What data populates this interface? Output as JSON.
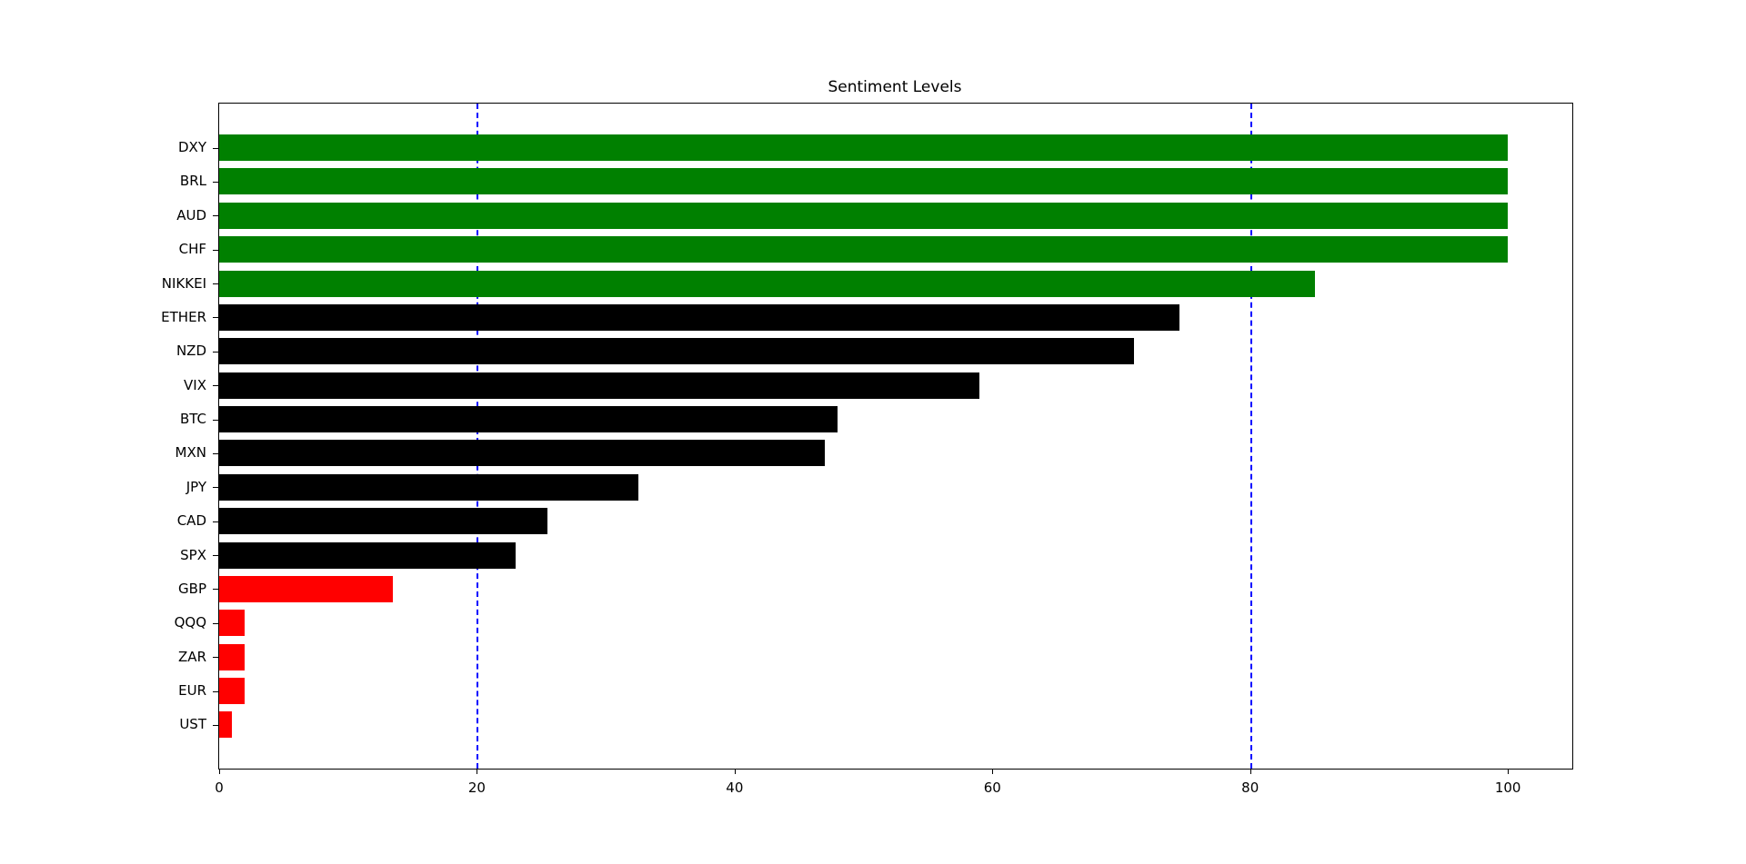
{
  "chart_data": {
    "type": "bar",
    "orientation": "horizontal",
    "title": "Sentiment Levels",
    "xlabel": "",
    "ylabel": "",
    "categories": [
      "DXY",
      "BRL",
      "AUD",
      "CHF",
      "NIKKEI",
      "ETHER",
      "NZD",
      "VIX",
      "BTC",
      "MXN",
      "JPY",
      "CAD",
      "SPX",
      "GBP",
      "QQQ",
      "ZAR",
      "EUR",
      "UST"
    ],
    "values": [
      100,
      100,
      100,
      100,
      85,
      74.5,
      71,
      59,
      48,
      47,
      32.5,
      25.5,
      23,
      13.5,
      2,
      2,
      2,
      1
    ],
    "bar_colors": [
      "#008000",
      "#008000",
      "#008000",
      "#008000",
      "#008000",
      "#000000",
      "#000000",
      "#000000",
      "#000000",
      "#000000",
      "#000000",
      "#000000",
      "#000000",
      "#ff0000",
      "#ff0000",
      "#ff0000",
      "#ff0000",
      "#ff0000"
    ],
    "xlim": [
      0,
      105
    ],
    "xticks": [
      "0",
      "20",
      "40",
      "60",
      "80",
      "100"
    ],
    "xtick_values": [
      0,
      20,
      40,
      60,
      80,
      100
    ],
    "grid": false,
    "legend": "none",
    "threshold_lines": {
      "values": [
        20,
        80
      ],
      "color": "#0000ff",
      "style": "dashed"
    },
    "color_meaning": {
      "bullish": "#008000",
      "neutral": "#000000",
      "bearish": "#ff0000"
    }
  }
}
